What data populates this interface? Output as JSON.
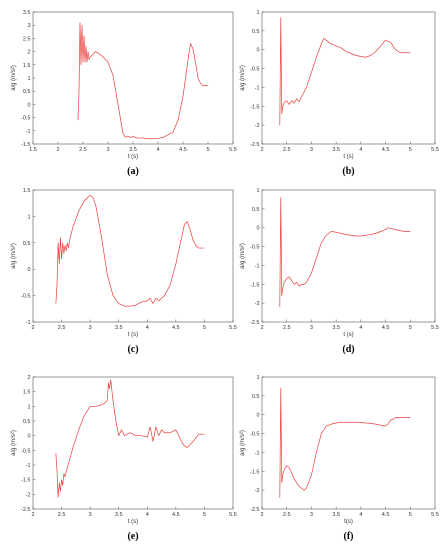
{
  "chart_data": [
    {
      "type": "line",
      "caption": "(a)",
      "xlabel": "t (s)",
      "ylabel": "a/g (m/s²)",
      "xlim": [
        1.5,
        5.5
      ],
      "ylim": [
        -1.5,
        3.5
      ],
      "xticks": [
        1.5,
        2,
        2.5,
        3,
        3.5,
        4,
        4.5,
        5,
        5.5
      ],
      "yticks": [
        -1.5,
        -1,
        -0.5,
        0,
        0.5,
        1,
        1.5,
        2,
        2.5,
        3,
        3.5
      ],
      "series": [
        {
          "color": "#e8403c",
          "x": [
            2.4,
            2.42,
            2.44,
            2.46,
            2.48,
            2.5,
            2.52,
            2.54,
            2.56,
            2.58,
            2.6,
            2.62,
            2.65,
            2.7,
            2.75,
            2.8,
            2.9,
            3.0,
            3.1,
            3.2,
            3.3,
            3.35,
            3.4,
            3.45,
            3.5,
            3.6,
            3.7,
            3.8,
            3.9,
            4.0,
            4.1,
            4.2,
            4.3,
            4.4,
            4.5,
            4.6,
            4.65,
            4.7,
            4.75,
            4.8,
            4.85,
            4.9,
            4.95,
            5.0
          ],
          "y": [
            -0.6,
            0.5,
            3.1,
            1.5,
            3.0,
            1.6,
            2.6,
            1.6,
            2.2,
            1.6,
            2.0,
            1.7,
            1.8,
            1.9,
            2.0,
            1.95,
            1.8,
            1.6,
            1.1,
            0.0,
            -1.1,
            -1.25,
            -1.2,
            -1.25,
            -1.22,
            -1.28,
            -1.27,
            -1.3,
            -1.3,
            -1.29,
            -1.25,
            -1.15,
            -1.05,
            -0.6,
            0.3,
            1.7,
            2.3,
            2.1,
            1.6,
            1.0,
            0.8,
            0.7,
            0.72,
            0.7
          ]
        }
      ]
    },
    {
      "type": "line",
      "caption": "(b)",
      "xlabel": "t (s)",
      "ylabel": "a/g (m/s²)",
      "xlim": [
        2,
        5.5
      ],
      "ylim": [
        -2.5,
        1
      ],
      "xticks": [
        2,
        2.5,
        3,
        3.5,
        4,
        4.5,
        5,
        5.5
      ],
      "yticks": [
        -2.5,
        -2,
        -1.5,
        -1,
        -0.5,
        0,
        0.5,
        1
      ],
      "series": [
        {
          "color": "#e8403c",
          "x": [
            2.36,
            2.38,
            2.4,
            2.42,
            2.45,
            2.5,
            2.55,
            2.6,
            2.65,
            2.7,
            2.75,
            2.8,
            2.9,
            3.0,
            3.1,
            3.2,
            3.25,
            3.3,
            3.35,
            3.4,
            3.5,
            3.6,
            3.7,
            3.8,
            3.9,
            4.0,
            4.1,
            4.2,
            4.3,
            4.4,
            4.5,
            4.6,
            4.7,
            4.8,
            4.9,
            5.0
          ],
          "y": [
            -2.0,
            0.85,
            -1.7,
            -1.5,
            -1.4,
            -1.35,
            -1.45,
            -1.35,
            -1.42,
            -1.3,
            -1.38,
            -1.25,
            -1.0,
            -0.6,
            -0.2,
            0.15,
            0.3,
            0.25,
            0.2,
            0.15,
            0.1,
            0.05,
            -0.05,
            -0.1,
            -0.15,
            -0.18,
            -0.2,
            -0.15,
            -0.05,
            0.1,
            0.25,
            0.2,
            0.0,
            -0.08,
            -0.08,
            -0.08
          ]
        }
      ]
    },
    {
      "type": "line",
      "caption": "(c)",
      "xlabel": "t (s)",
      "ylabel": "a/g (m/s²)",
      "xlim": [
        2,
        5.5
      ],
      "ylim": [
        -1,
        1.5
      ],
      "xticks": [
        2,
        2.5,
        3,
        3.5,
        4,
        4.5,
        5,
        5.5
      ],
      "yticks": [
        -1,
        -0.5,
        0,
        0.5,
        1,
        1.5
      ],
      "series": [
        {
          "color": "#e8403c",
          "x": [
            2.4,
            2.42,
            2.44,
            2.46,
            2.48,
            2.5,
            2.52,
            2.54,
            2.56,
            2.58,
            2.6,
            2.62,
            2.65,
            2.7,
            2.8,
            2.9,
            3.0,
            3.05,
            3.1,
            3.2,
            3.3,
            3.4,
            3.5,
            3.6,
            3.7,
            3.8,
            3.9,
            4.0,
            4.05,
            4.1,
            4.15,
            4.2,
            4.3,
            4.4,
            4.5,
            4.6,
            4.65,
            4.7,
            4.75,
            4.8,
            4.85,
            4.9,
            4.95,
            5.0
          ],
          "y": [
            -0.65,
            -0.3,
            0.5,
            0.1,
            0.6,
            0.2,
            0.5,
            0.3,
            0.45,
            0.35,
            0.5,
            0.4,
            0.6,
            0.8,
            1.1,
            1.3,
            1.4,
            1.35,
            1.2,
            0.6,
            -0.1,
            -0.5,
            -0.65,
            -0.7,
            -0.7,
            -0.68,
            -0.62,
            -0.6,
            -0.55,
            -0.65,
            -0.55,
            -0.6,
            -0.5,
            -0.3,
            0.1,
            0.6,
            0.85,
            0.9,
            0.75,
            0.55,
            0.45,
            0.4,
            0.4,
            0.4
          ]
        }
      ]
    },
    {
      "type": "line",
      "caption": "(d)",
      "xlabel": "t (s)",
      "ylabel": "a/g (m/s²)",
      "xlim": [
        2,
        5.5
      ],
      "ylim": [
        -2.5,
        1
      ],
      "xticks": [
        2,
        2.5,
        3,
        3.5,
        4,
        4.5,
        5,
        5.5
      ],
      "yticks": [
        -2.5,
        -2,
        -1.5,
        -1,
        -0.5,
        0,
        0.5,
        1
      ],
      "series": [
        {
          "color": "#e8403c",
          "x": [
            2.36,
            2.38,
            2.4,
            2.42,
            2.45,
            2.5,
            2.55,
            2.6,
            2.65,
            2.7,
            2.75,
            2.8,
            2.85,
            2.9,
            3.0,
            3.1,
            3.2,
            3.3,
            3.4,
            3.5,
            3.6,
            3.7,
            3.8,
            3.9,
            4.0,
            4.1,
            4.2,
            4.3,
            4.4,
            4.5,
            4.55,
            4.6,
            4.7,
            4.8,
            4.9,
            5.0
          ],
          "y": [
            -2.1,
            0.8,
            -1.8,
            -1.6,
            -1.45,
            -1.35,
            -1.3,
            -1.4,
            -1.5,
            -1.45,
            -1.55,
            -1.5,
            -1.5,
            -1.45,
            -1.2,
            -0.8,
            -0.4,
            -0.2,
            -0.1,
            -0.12,
            -0.15,
            -0.18,
            -0.2,
            -0.22,
            -0.22,
            -0.2,
            -0.18,
            -0.15,
            -0.1,
            -0.05,
            0.0,
            -0.02,
            -0.05,
            -0.08,
            -0.1,
            -0.1
          ]
        }
      ]
    },
    {
      "type": "line",
      "caption": "(e)",
      "xlabel": "t (s)",
      "ylabel": "a/g (m/s²)",
      "xlim": [
        2,
        5.5
      ],
      "ylim": [
        -2.5,
        2
      ],
      "xticks": [
        2,
        2.5,
        3,
        3.5,
        4,
        4.5,
        5,
        5.5
      ],
      "yticks": [
        -2.5,
        -2,
        -1.5,
        -1,
        -0.5,
        0,
        0.5,
        1,
        1.5,
        2
      ],
      "series": [
        {
          "color": "#e8403c",
          "x": [
            2.4,
            2.42,
            2.44,
            2.46,
            2.48,
            2.5,
            2.52,
            2.54,
            2.56,
            2.6,
            2.7,
            2.8,
            2.9,
            3.0,
            3.1,
            3.2,
            3.25,
            3.3,
            3.32,
            3.34,
            3.36,
            3.4,
            3.45,
            3.5,
            3.55,
            3.6,
            3.7,
            3.8,
            3.9,
            4.0,
            4.05,
            4.1,
            4.15,
            4.2,
            4.25,
            4.3,
            4.4,
            4.5,
            4.6,
            4.65,
            4.7,
            4.8,
            4.9,
            5.0
          ],
          "y": [
            -0.6,
            -1.2,
            -2.1,
            -1.6,
            -1.9,
            -1.5,
            -1.7,
            -1.3,
            -1.4,
            -1.1,
            -0.4,
            0.2,
            0.7,
            1.0,
            1.0,
            1.05,
            1.1,
            1.2,
            1.8,
            1.6,
            1.9,
            1.2,
            0.5,
            0.0,
            0.2,
            0.0,
            0.1,
            0.0,
            0.0,
            -0.05,
            0.3,
            -0.2,
            0.3,
            0.0,
            0.2,
            0.1,
            0.1,
            0.2,
            -0.2,
            -0.35,
            -0.4,
            -0.2,
            0.05,
            0.05
          ]
        }
      ]
    },
    {
      "type": "line",
      "caption": "(f)",
      "xlabel": "t(s)",
      "ylabel": "a/g (m/s²)",
      "xlim": [
        2,
        5.5
      ],
      "ylim": [
        -2.5,
        1
      ],
      "xticks": [
        2,
        2.5,
        3,
        3.5,
        4,
        4.5,
        5,
        5.5
      ],
      "yticks": [
        -2.5,
        -2,
        -1.5,
        -1,
        -0.5,
        0,
        0.5,
        1
      ],
      "series": [
        {
          "color": "#e8403c",
          "x": [
            2.36,
            2.38,
            2.4,
            2.42,
            2.45,
            2.5,
            2.55,
            2.6,
            2.65,
            2.7,
            2.75,
            2.8,
            2.85,
            2.9,
            3.0,
            3.1,
            3.2,
            3.3,
            3.4,
            3.5,
            3.6,
            3.7,
            3.8,
            3.9,
            4.0,
            4.1,
            4.2,
            4.3,
            4.4,
            4.5,
            4.55,
            4.6,
            4.7,
            4.8,
            4.9,
            5.0
          ],
          "y": [
            -2.2,
            0.7,
            -1.8,
            -1.6,
            -1.45,
            -1.35,
            -1.4,
            -1.55,
            -1.7,
            -1.8,
            -1.9,
            -1.95,
            -2.0,
            -1.95,
            -1.6,
            -1.0,
            -0.5,
            -0.3,
            -0.25,
            -0.22,
            -0.2,
            -0.2,
            -0.2,
            -0.2,
            -0.21,
            -0.22,
            -0.23,
            -0.25,
            -0.28,
            -0.3,
            -0.25,
            -0.15,
            -0.08,
            -0.07,
            -0.07,
            -0.07
          ]
        }
      ]
    }
  ]
}
